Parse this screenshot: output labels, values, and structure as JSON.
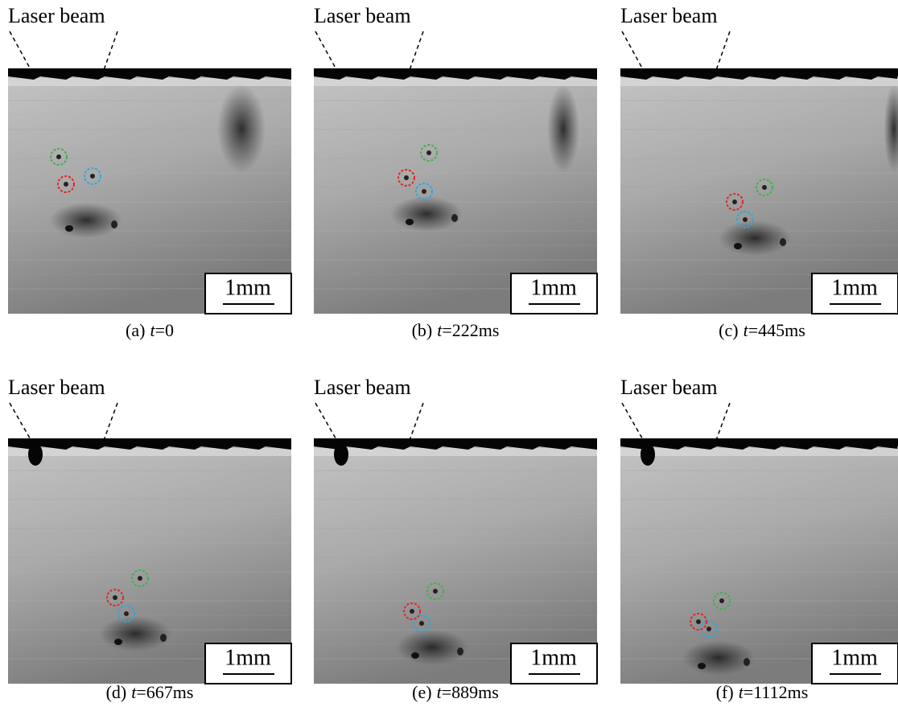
{
  "panels": [
    {
      "beam_label": "Laser beam",
      "scale": "1mm",
      "caption_tag": "(a)",
      "caption_var": "t",
      "caption_value": "=0"
    },
    {
      "beam_label": "Laser beam",
      "scale": "1mm",
      "caption_tag": "(b)",
      "caption_var": "t",
      "caption_value": "=222ms"
    },
    {
      "beam_label": "Laser beam",
      "scale": "1mm",
      "caption_tag": "(c)",
      "caption_var": "t",
      "caption_value": "=445ms"
    },
    {
      "beam_label": "Laser beam",
      "scale": "1mm",
      "caption_tag": "(d)",
      "caption_var": "t",
      "caption_value": "=667ms"
    },
    {
      "beam_label": "Laser beam",
      "scale": "1mm",
      "caption_tag": "(e)",
      "caption_var": "t",
      "caption_value": "=889ms"
    },
    {
      "beam_label": "Laser beam",
      "scale": "1mm",
      "caption_tag": "(f)",
      "caption_var": "t",
      "caption_value": "=1112ms"
    }
  ]
}
